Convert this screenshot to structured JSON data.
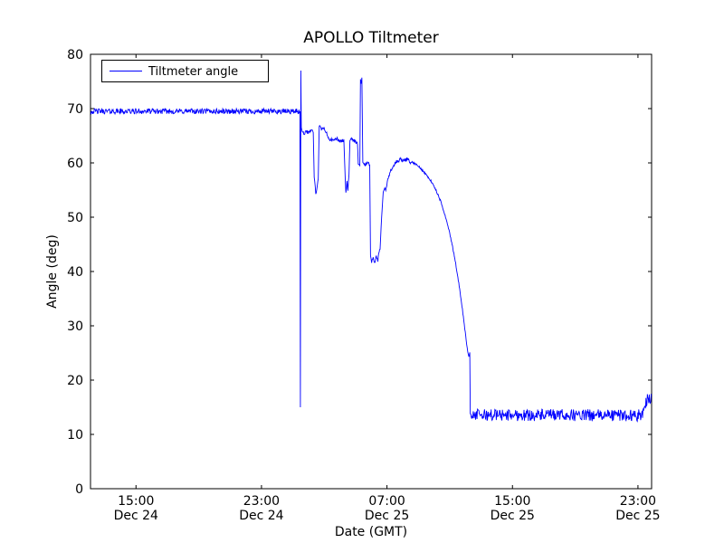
{
  "chart_data": {
    "type": "line",
    "title": "APOLLO Tiltmeter",
    "xlabel": "Date (GMT)",
    "ylabel": "Angle (deg)",
    "legend": [
      "Tiltmeter angle"
    ],
    "legend_position": "upper left",
    "grid": false,
    "background_color": "#ffffff",
    "frame_color": "#000000",
    "ylim": [
      0,
      80
    ],
    "yticks": [
      0,
      10,
      20,
      30,
      40,
      50,
      60,
      70,
      80
    ],
    "x_unit": "hours since Dec 24 00:00 GMT",
    "xlim": [
      12.1,
      47.87
    ],
    "xticks": [
      {
        "t": 15,
        "line1": "15:00",
        "line2": "Dec 24"
      },
      {
        "t": 23,
        "line1": "23:00",
        "line2": "Dec 24"
      },
      {
        "t": 31,
        "line1": "07:00",
        "line2": "Dec 25"
      },
      {
        "t": 39,
        "line1": "15:00",
        "line2": "Dec 25"
      },
      {
        "t": 47,
        "line1": "23:00",
        "line2": "Dec 25"
      }
    ],
    "series": [
      {
        "name": "Tiltmeter angle",
        "color": "#0000ff",
        "line_width": 0.9,
        "sample_dt": 0.03,
        "noise_seed": 42,
        "anchors": [
          [
            12.1,
            69.5
          ],
          [
            25.45,
            69.5
          ],
          [
            25.48,
            15.0
          ],
          [
            25.51,
            77.0
          ],
          [
            25.54,
            66.5
          ],
          [
            25.7,
            65.3
          ],
          [
            25.85,
            66.0
          ],
          [
            26.0,
            65.4
          ],
          [
            26.15,
            66.1
          ],
          [
            26.3,
            65.8
          ],
          [
            26.36,
            57.3
          ],
          [
            26.46,
            54.4
          ],
          [
            26.56,
            55.6
          ],
          [
            26.62,
            57.0
          ],
          [
            26.68,
            66.8
          ],
          [
            26.82,
            66.2
          ],
          [
            26.96,
            66.5
          ],
          [
            27.1,
            65.7
          ],
          [
            27.3,
            64.4
          ],
          [
            27.55,
            64.1
          ],
          [
            27.8,
            64.5
          ],
          [
            28.05,
            63.9
          ],
          [
            28.25,
            64.2
          ],
          [
            28.31,
            59.5
          ],
          [
            28.38,
            54.2
          ],
          [
            28.45,
            56.8
          ],
          [
            28.51,
            54.6
          ],
          [
            28.58,
            58.0
          ],
          [
            28.64,
            64.1
          ],
          [
            28.8,
            64.4
          ],
          [
            29.0,
            63.9
          ],
          [
            29.12,
            63.5
          ],
          [
            29.17,
            59.8
          ],
          [
            29.27,
            59.5
          ],
          [
            29.31,
            75.4
          ],
          [
            29.36,
            74.6
          ],
          [
            29.4,
            75.7
          ],
          [
            29.46,
            60.1
          ],
          [
            29.6,
            59.6
          ],
          [
            29.75,
            60.1
          ],
          [
            29.9,
            59.7
          ],
          [
            29.95,
            43.0
          ],
          [
            30.02,
            41.6
          ],
          [
            30.12,
            42.6
          ],
          [
            30.22,
            41.4
          ],
          [
            30.32,
            42.9
          ],
          [
            30.42,
            41.9
          ],
          [
            30.5,
            43.4
          ],
          [
            30.56,
            44.6
          ],
          [
            30.66,
            50.0
          ],
          [
            30.76,
            54.6
          ],
          [
            30.86,
            55.4
          ],
          [
            30.92,
            54.9
          ],
          [
            31.02,
            56.4
          ],
          [
            31.12,
            57.4
          ],
          [
            31.24,
            58.4
          ],
          [
            31.38,
            59.3
          ],
          [
            31.52,
            60.0
          ],
          [
            31.7,
            60.3
          ],
          [
            31.9,
            60.6
          ],
          [
            32.1,
            60.3
          ],
          [
            32.3,
            60.8
          ],
          [
            32.5,
            60.2
          ],
          [
            32.7,
            60.0
          ],
          [
            33.0,
            59.4
          ],
          [
            33.4,
            58.2
          ],
          [
            33.8,
            56.7
          ],
          [
            34.1,
            55.1
          ],
          [
            34.4,
            53.1
          ],
          [
            34.7,
            50.4
          ],
          [
            34.95,
            47.7
          ],
          [
            35.15,
            45.0
          ],
          [
            35.35,
            42.0
          ],
          [
            35.55,
            38.4
          ],
          [
            35.75,
            34.4
          ],
          [
            35.9,
            30.9
          ],
          [
            36.05,
            27.4
          ],
          [
            36.15,
            25.2
          ],
          [
            36.22,
            24.3
          ],
          [
            36.28,
            25.1
          ],
          [
            36.31,
            13.8
          ],
          [
            36.5,
            13.6
          ],
          [
            47.2,
            13.5
          ],
          [
            47.45,
            15.2
          ],
          [
            47.6,
            16.8
          ],
          [
            47.75,
            16.2
          ],
          [
            47.87,
            16.9
          ]
        ],
        "noise_regions": [
          {
            "from": 12.1,
            "to": 25.44,
            "amp": 0.5
          },
          {
            "from": 25.56,
            "to": 29.26,
            "amp": 0.35
          },
          {
            "from": 29.5,
            "to": 29.92,
            "amp": 0.3
          },
          {
            "from": 29.94,
            "to": 30.6,
            "amp": 0.55
          },
          {
            "from": 30.95,
            "to": 32.55,
            "amp": 0.4
          },
          {
            "from": 32.6,
            "to": 36.1,
            "amp": 0.18
          },
          {
            "from": 36.35,
            "to": 47.87,
            "amp": 1.1
          }
        ]
      }
    ]
  }
}
